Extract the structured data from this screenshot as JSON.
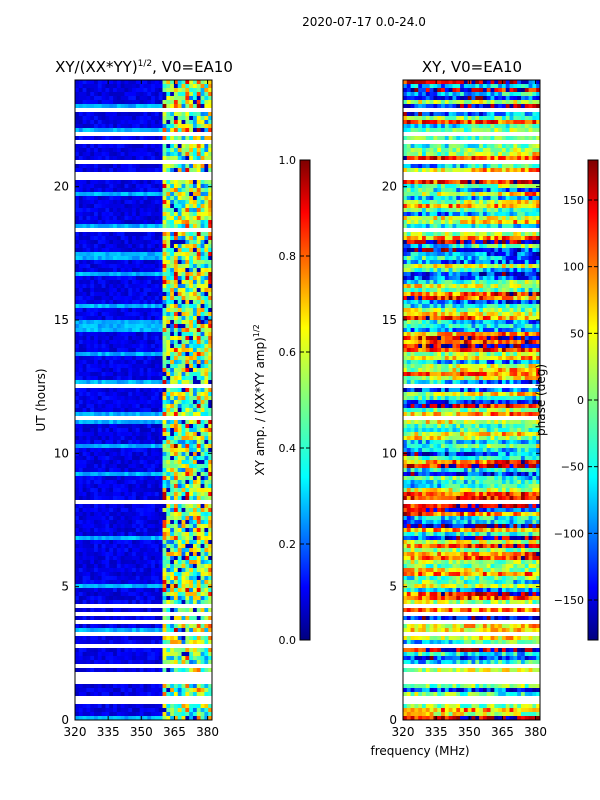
{
  "figure": {
    "suptitle": "2020-07-17 0.0-24.0",
    "xlabel_shared": "frequency (MHz)"
  },
  "colors": {
    "jet": [
      "#00007f",
      "#0000ff",
      "#007fff",
      "#00ffff",
      "#7fff7f",
      "#ffff00",
      "#ff7f00",
      "#ff0000",
      "#7f0000"
    ]
  },
  "chart_data": [
    {
      "type": "heatmap",
      "id": "amp",
      "title": "XY/(XX*YY)",
      "title_exponent": "1/2",
      "title_suffix": ", V0=EA10",
      "xlabel": "",
      "ylabel": "UT (hours)",
      "xlim": [
        320,
        382
      ],
      "ylim": [
        0,
        24
      ],
      "xticks": [
        320,
        335,
        350,
        365,
        380
      ],
      "yticks": [
        0,
        5,
        10,
        15,
        20
      ],
      "colorbar": {
        "label": "XY amp. / (XX*YY amp)",
        "label_exponent": "1/2",
        "range": [
          0.0,
          1.0
        ],
        "ticks": [
          "0.0",
          "0.2",
          "0.4",
          "0.6",
          "0.8",
          "1.0"
        ]
      },
      "description_values": {
        "low_band_mhz": [
          320,
          359
        ],
        "low_band_level": 0.05,
        "high_band_mhz": [
          359,
          382
        ],
        "high_band_level_range": [
          0.2,
          0.9
        ]
      },
      "gaps_hours": [
        [
          0.55,
          0.85
        ],
        [
          1.4,
          1.75
        ],
        [
          1.95,
          2.05
        ],
        [
          2.75,
          2.85
        ],
        [
          3.2,
          3.3
        ],
        [
          3.6,
          3.7
        ],
        [
          3.85,
          4.0
        ],
        [
          4.25,
          4.4
        ],
        [
          7.3,
          7.4
        ],
        [
          8.1,
          8.2
        ],
        [
          11.3,
          11.4
        ],
        [
          12.5,
          12.6
        ],
        [
          18.3,
          18.4
        ],
        [
          20.2,
          20.55
        ],
        [
          20.9,
          21.0
        ],
        [
          21.6,
          21.7
        ],
        [
          21.95,
          22.1
        ],
        [
          22.8,
          22.95
        ]
      ]
    },
    {
      "type": "heatmap",
      "id": "phase",
      "title": "XY, V0=EA10",
      "xlabel": "frequency (MHz)",
      "ylabel": "",
      "xlim": [
        320,
        382
      ],
      "ylim": [
        0,
        24
      ],
      "xticks": [
        320,
        335,
        350,
        365,
        380
      ],
      "yticks": [
        0,
        5,
        10,
        15,
        20
      ],
      "colorbar": {
        "label": "phase (deg)",
        "range": [
          -180,
          180
        ],
        "ticks": [
          -150,
          -100,
          -50,
          0,
          50,
          100,
          150
        ],
        "tick_labels": [
          "−150",
          "−100",
          "−50",
          "0",
          "50",
          "100",
          "150"
        ]
      },
      "gaps_hours": [
        [
          0.55,
          0.85
        ],
        [
          1.4,
          1.75
        ],
        [
          1.95,
          2.05
        ],
        [
          2.75,
          2.85
        ],
        [
          3.2,
          3.3
        ],
        [
          3.6,
          3.7
        ],
        [
          3.85,
          4.0
        ],
        [
          4.25,
          4.4
        ],
        [
          7.3,
          7.4
        ],
        [
          8.1,
          8.2
        ],
        [
          11.3,
          11.4
        ],
        [
          12.5,
          12.6
        ],
        [
          18.3,
          18.4
        ],
        [
          20.2,
          20.55
        ],
        [
          20.9,
          21.0
        ],
        [
          21.6,
          21.7
        ],
        [
          21.95,
          22.1
        ],
        [
          22.8,
          22.95
        ]
      ]
    }
  ]
}
